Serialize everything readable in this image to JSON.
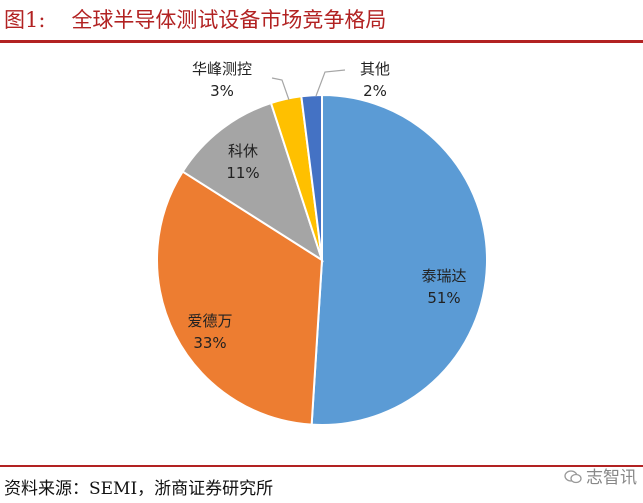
{
  "figure": {
    "number": "图1:",
    "title": "全球半导体测试设备市场竞争格局"
  },
  "chart_data": {
    "type": "pie",
    "slices": [
      {
        "name": "泰瑞达",
        "value": 51,
        "label": "51%",
        "color": "#5B9BD5"
      },
      {
        "name": "爱德万",
        "value": 33,
        "label": "33%",
        "color": "#ED7D31"
      },
      {
        "name": "科休",
        "value": 11,
        "label": "11%",
        "color": "#A5A5A5"
      },
      {
        "name": "华峰测控",
        "value": 3,
        "label": "3%",
        "color": "#FFC000"
      },
      {
        "name": "其他",
        "value": 2,
        "label": "2%",
        "color": "#4472C4"
      }
    ],
    "start": "12 o'clock",
    "direction": "clockwise"
  },
  "source": "资料来源：SEMI，浙商证券研究所",
  "watermark": "志智讯",
  "colors": {
    "accent": "#B22222"
  }
}
